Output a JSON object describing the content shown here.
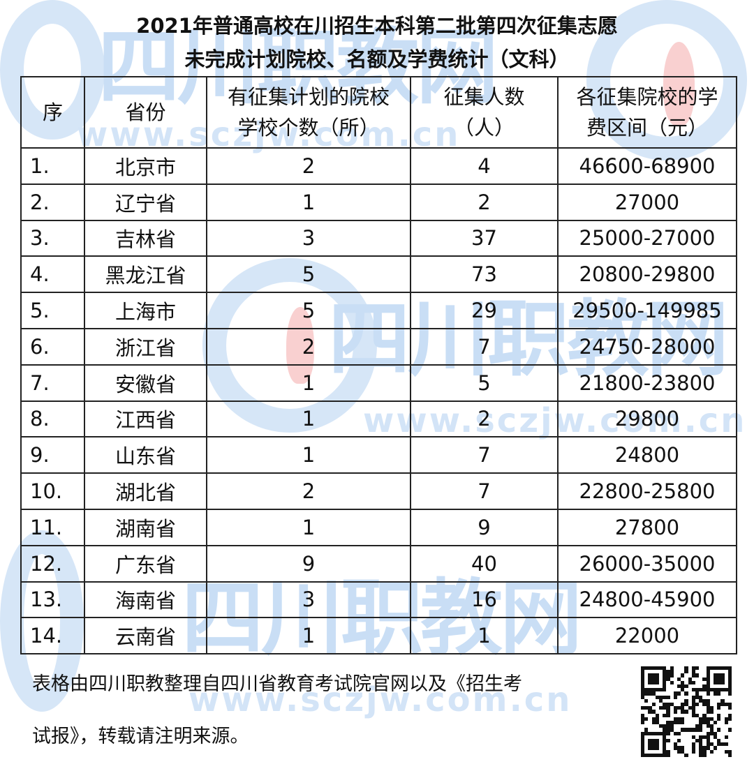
{
  "watermark": {
    "brand": "四川职教网",
    "url": "www.sczjw.com.cn",
    "color": "#c9def5"
  },
  "title": {
    "line1": "2021年普通高校在川招生本科第二批第四次征集志愿",
    "line2": "未完成计划院校、名额及学费统计（文科）"
  },
  "table": {
    "headers": [
      "序",
      "省份",
      "有征集计划的院校学校个数（所）",
      "征集人数（人）",
      "各征集院校的学费区间（元）"
    ],
    "rows": [
      [
        "1.",
        "北京市",
        "2",
        "4",
        "46600-68900"
      ],
      [
        "2.",
        "辽宁省",
        "1",
        "2",
        "27000"
      ],
      [
        "3.",
        "吉林省",
        "3",
        "37",
        "25000-27000"
      ],
      [
        "4.",
        "黑龙江省",
        "5",
        "73",
        "20800-29800"
      ],
      [
        "5.",
        "上海市",
        "5",
        "29",
        "29500-149985"
      ],
      [
        "6.",
        "浙江省",
        "2",
        "7",
        "24750-28000"
      ],
      [
        "7.",
        "安徽省",
        "1",
        "5",
        "21800-23800"
      ],
      [
        "8.",
        "江西省",
        "1",
        "2",
        "29800"
      ],
      [
        "9.",
        "山东省",
        "1",
        "7",
        "24800"
      ],
      [
        "10.",
        "湖北省",
        "2",
        "7",
        "22800-25800"
      ],
      [
        "11.",
        "湖南省",
        "1",
        "9",
        "27800"
      ],
      [
        "12.",
        "广东省",
        "9",
        "40",
        "26000-35000"
      ],
      [
        "13.",
        "海南省",
        "3",
        "16",
        "24800-45900"
      ],
      [
        "14.",
        "云南省",
        "1",
        "1",
        "22000"
      ]
    ]
  },
  "footer": {
    "line1": "表格由四川职教整理自四川省教育考试院官网以及《招生考",
    "line2": "试报》，转载请注明来源。"
  },
  "qr_icon": "qr-code"
}
